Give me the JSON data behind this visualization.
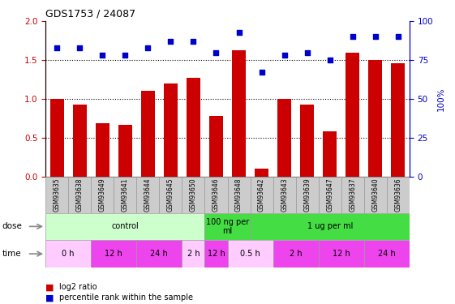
{
  "title": "GDS1753 / 24087",
  "samples": [
    "GSM93635",
    "GSM93638",
    "GSM93649",
    "GSM93641",
    "GSM93644",
    "GSM93645",
    "GSM93650",
    "GSM93646",
    "GSM93648",
    "GSM93642",
    "GSM93643",
    "GSM93639",
    "GSM93647",
    "GSM93637",
    "GSM93640",
    "GSM93636"
  ],
  "log2_ratio": [
    1.0,
    0.93,
    0.68,
    0.66,
    1.1,
    1.2,
    1.27,
    0.78,
    1.63,
    0.1,
    1.0,
    0.93,
    0.58,
    1.6,
    1.5,
    1.46
  ],
  "percentile": [
    83,
    83,
    78,
    78,
    83,
    87,
    87,
    80,
    93,
    67,
    78,
    80,
    75,
    90,
    90,
    90
  ],
  "ylim": [
    0,
    2
  ],
  "y2lim": [
    0,
    100
  ],
  "yticks": [
    0,
    0.5,
    1.0,
    1.5,
    2.0
  ],
  "y2ticks": [
    0,
    25,
    50,
    75,
    100
  ],
  "bar_color": "#cc0000",
  "dot_color": "#0000cc",
  "bg_color": "#ffffff",
  "dose_groups": [
    {
      "label": "control",
      "start": 0,
      "end": 7,
      "color": "#ccffcc"
    },
    {
      "label": "100 ng per\nml",
      "start": 7,
      "end": 9,
      "color": "#44dd44"
    },
    {
      "label": "1 ug per ml",
      "start": 9,
      "end": 16,
      "color": "#44dd44"
    }
  ],
  "time_groups": [
    {
      "label": "0 h",
      "start": 0,
      "end": 2,
      "color": "#ffccff"
    },
    {
      "label": "12 h",
      "start": 2,
      "end": 4,
      "color": "#ee44ee"
    },
    {
      "label": "24 h",
      "start": 4,
      "end": 6,
      "color": "#ee44ee"
    },
    {
      "label": "2 h",
      "start": 6,
      "end": 7,
      "color": "#ffccff"
    },
    {
      "label": "12 h",
      "start": 7,
      "end": 8,
      "color": "#ee44ee"
    },
    {
      "label": "0.5 h",
      "start": 8,
      "end": 10,
      "color": "#ffccff"
    },
    {
      "label": "2 h",
      "start": 10,
      "end": 12,
      "color": "#ee44ee"
    },
    {
      "label": "12 h",
      "start": 12,
      "end": 14,
      "color": "#ee44ee"
    },
    {
      "label": "24 h",
      "start": 14,
      "end": 16,
      "color": "#ee44ee"
    }
  ],
  "legend_red": "log2 ratio",
  "legend_blue": "percentile rank within the sample",
  "dose_label": "dose",
  "time_label": "time",
  "xtick_bg": "#cccccc",
  "border_color": "#999999"
}
